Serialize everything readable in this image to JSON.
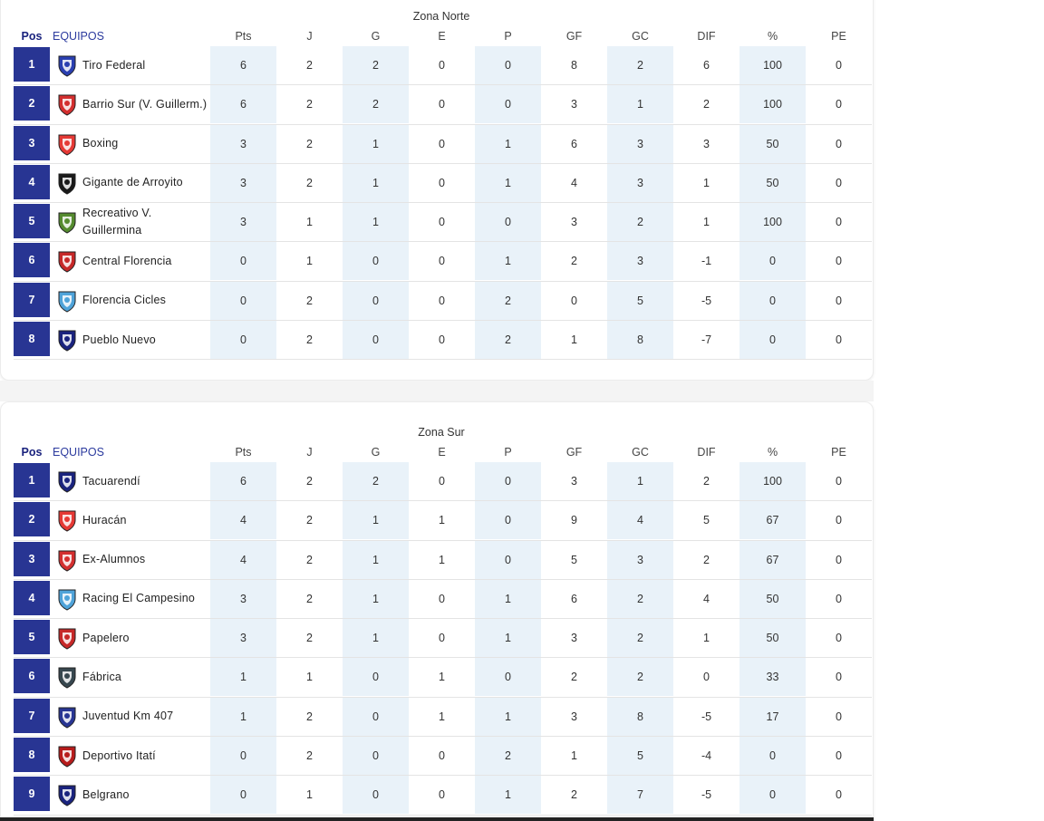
{
  "columns": {
    "pos": "Pos",
    "team": "EQUIPOS",
    "pts": "Pts",
    "j": "J",
    "g": "G",
    "e": "E",
    "p": "P",
    "gf": "GF",
    "gc": "GC",
    "dif": "DIF",
    "pct": "%",
    "pe": "PE"
  },
  "zones": [
    {
      "title": "Zona Norte",
      "rows": [
        {
          "pos": "1",
          "team": "Tiro Federal",
          "crest": "tiro-federal-crest-icon",
          "color": "#2a3fb0",
          "pts": "6",
          "j": "2",
          "g": "2",
          "e": "0",
          "p": "0",
          "gf": "8",
          "gc": "2",
          "dif": "6",
          "pct": "100",
          "pe": "0"
        },
        {
          "pos": "2",
          "team": "Barrio Sur (V. Guillerm.)",
          "crest": "barrio-sur-crest-icon",
          "color": "#d32f2f",
          "pts": "6",
          "j": "2",
          "g": "2",
          "e": "0",
          "p": "0",
          "gf": "3",
          "gc": "1",
          "dif": "2",
          "pct": "100",
          "pe": "0"
        },
        {
          "pos": "3",
          "team": "Boxing",
          "crest": "boxing-crest-icon",
          "color": "#e53935",
          "pts": "3",
          "j": "2",
          "g": "1",
          "e": "0",
          "p": "1",
          "gf": "6",
          "gc": "3",
          "dif": "3",
          "pct": "50",
          "pe": "0"
        },
        {
          "pos": "4",
          "team": "Gigante de Arroyito",
          "crest": "gigante-de-arroyito-crest-icon",
          "color": "#1a1a1a",
          "pts": "3",
          "j": "2",
          "g": "1",
          "e": "0",
          "p": "1",
          "gf": "4",
          "gc": "3",
          "dif": "1",
          "pct": "50",
          "pe": "0"
        },
        {
          "pos": "5",
          "team": "Recreativo V. Guillermina",
          "crest": "recreativo-crest-icon",
          "color": "#558b2f",
          "pts": "3",
          "j": "1",
          "g": "1",
          "e": "0",
          "p": "0",
          "gf": "3",
          "gc": "2",
          "dif": "1",
          "pct": "100",
          "pe": "0"
        },
        {
          "pos": "6",
          "team": "Central Florencia",
          "crest": "central-florencia-crest-icon",
          "color": "#c62828",
          "pts": "0",
          "j": "1",
          "g": "0",
          "e": "0",
          "p": "1",
          "gf": "2",
          "gc": "3",
          "dif": "-1",
          "pct": "0",
          "pe": "0"
        },
        {
          "pos": "7",
          "team": "Florencia Cicles",
          "crest": "florencia-cicles-crest-icon",
          "color": "#4fa3d9",
          "pts": "0",
          "j": "2",
          "g": "0",
          "e": "0",
          "p": "2",
          "gf": "0",
          "gc": "5",
          "dif": "-5",
          "pct": "0",
          "pe": "0"
        },
        {
          "pos": "8",
          "team": "Pueblo Nuevo",
          "crest": "pueblo-nuevo-crest-icon",
          "color": "#1a237e",
          "pts": "0",
          "j": "2",
          "g": "0",
          "e": "0",
          "p": "2",
          "gf": "1",
          "gc": "8",
          "dif": "-7",
          "pct": "0",
          "pe": "0"
        }
      ]
    },
    {
      "title": "Zona Sur",
      "rows": [
        {
          "pos": "1",
          "team": "Tacuarendí",
          "crest": "tacuarendi-crest-icon",
          "color": "#1a237e",
          "pts": "6",
          "j": "2",
          "g": "2",
          "e": "0",
          "p": "0",
          "gf": "3",
          "gc": "1",
          "dif": "2",
          "pct": "100",
          "pe": "0"
        },
        {
          "pos": "2",
          "team": "Huracán",
          "crest": "huracan-crest-icon",
          "color": "#e53935",
          "pts": "4",
          "j": "2",
          "g": "1",
          "e": "1",
          "p": "0",
          "gf": "9",
          "gc": "4",
          "dif": "5",
          "pct": "67",
          "pe": "0"
        },
        {
          "pos": "3",
          "team": "Ex-Alumnos",
          "crest": "ex-alumnos-crest-icon",
          "color": "#d32f2f",
          "pts": "4",
          "j": "2",
          "g": "1",
          "e": "1",
          "p": "0",
          "gf": "5",
          "gc": "3",
          "dif": "2",
          "pct": "67",
          "pe": "0"
        },
        {
          "pos": "4",
          "team": "Racing El Campesino",
          "crest": "racing-crest-icon",
          "color": "#4fa3d9",
          "pts": "3",
          "j": "2",
          "g": "1",
          "e": "0",
          "p": "1",
          "gf": "6",
          "gc": "2",
          "dif": "4",
          "pct": "50",
          "pe": "0"
        },
        {
          "pos": "5",
          "team": "Papelero",
          "crest": "papelero-crest-icon",
          "color": "#c62828",
          "pts": "3",
          "j": "2",
          "g": "1",
          "e": "0",
          "p": "1",
          "gf": "3",
          "gc": "2",
          "dif": "1",
          "pct": "50",
          "pe": "0"
        },
        {
          "pos": "6",
          "team": "Fábrica",
          "crest": "fabrica-crest-icon",
          "color": "#37474f",
          "pts": "1",
          "j": "1",
          "g": "0",
          "e": "1",
          "p": "0",
          "gf": "2",
          "gc": "2",
          "dif": "0",
          "pct": "33",
          "pe": "0"
        },
        {
          "pos": "7",
          "team": "Juventud Km 407",
          "crest": "juventud-crest-icon",
          "color": "#283593",
          "pts": "1",
          "j": "2",
          "g": "0",
          "e": "1",
          "p": "1",
          "gf": "3",
          "gc": "8",
          "dif": "-5",
          "pct": "17",
          "pe": "0"
        },
        {
          "pos": "8",
          "team": "Deportivo Itatí",
          "crest": "deportivo-itati-crest-icon",
          "color": "#b71c1c",
          "pts": "0",
          "j": "2",
          "g": "0",
          "e": "0",
          "p": "2",
          "gf": "1",
          "gc": "5",
          "dif": "-4",
          "pct": "0",
          "pe": "0"
        },
        {
          "pos": "9",
          "team": "Belgrano",
          "crest": "belgrano-crest-icon",
          "color": "#1a237e",
          "pts": "0",
          "j": "1",
          "g": "0",
          "e": "0",
          "p": "1",
          "gf": "2",
          "gc": "7",
          "dif": "-5",
          "pct": "0",
          "pe": "0"
        }
      ]
    }
  ],
  "colors": {
    "pos_badge": "#283593",
    "shaded_column": "#e9f2f9",
    "team_header": "#2b3a9e"
  }
}
